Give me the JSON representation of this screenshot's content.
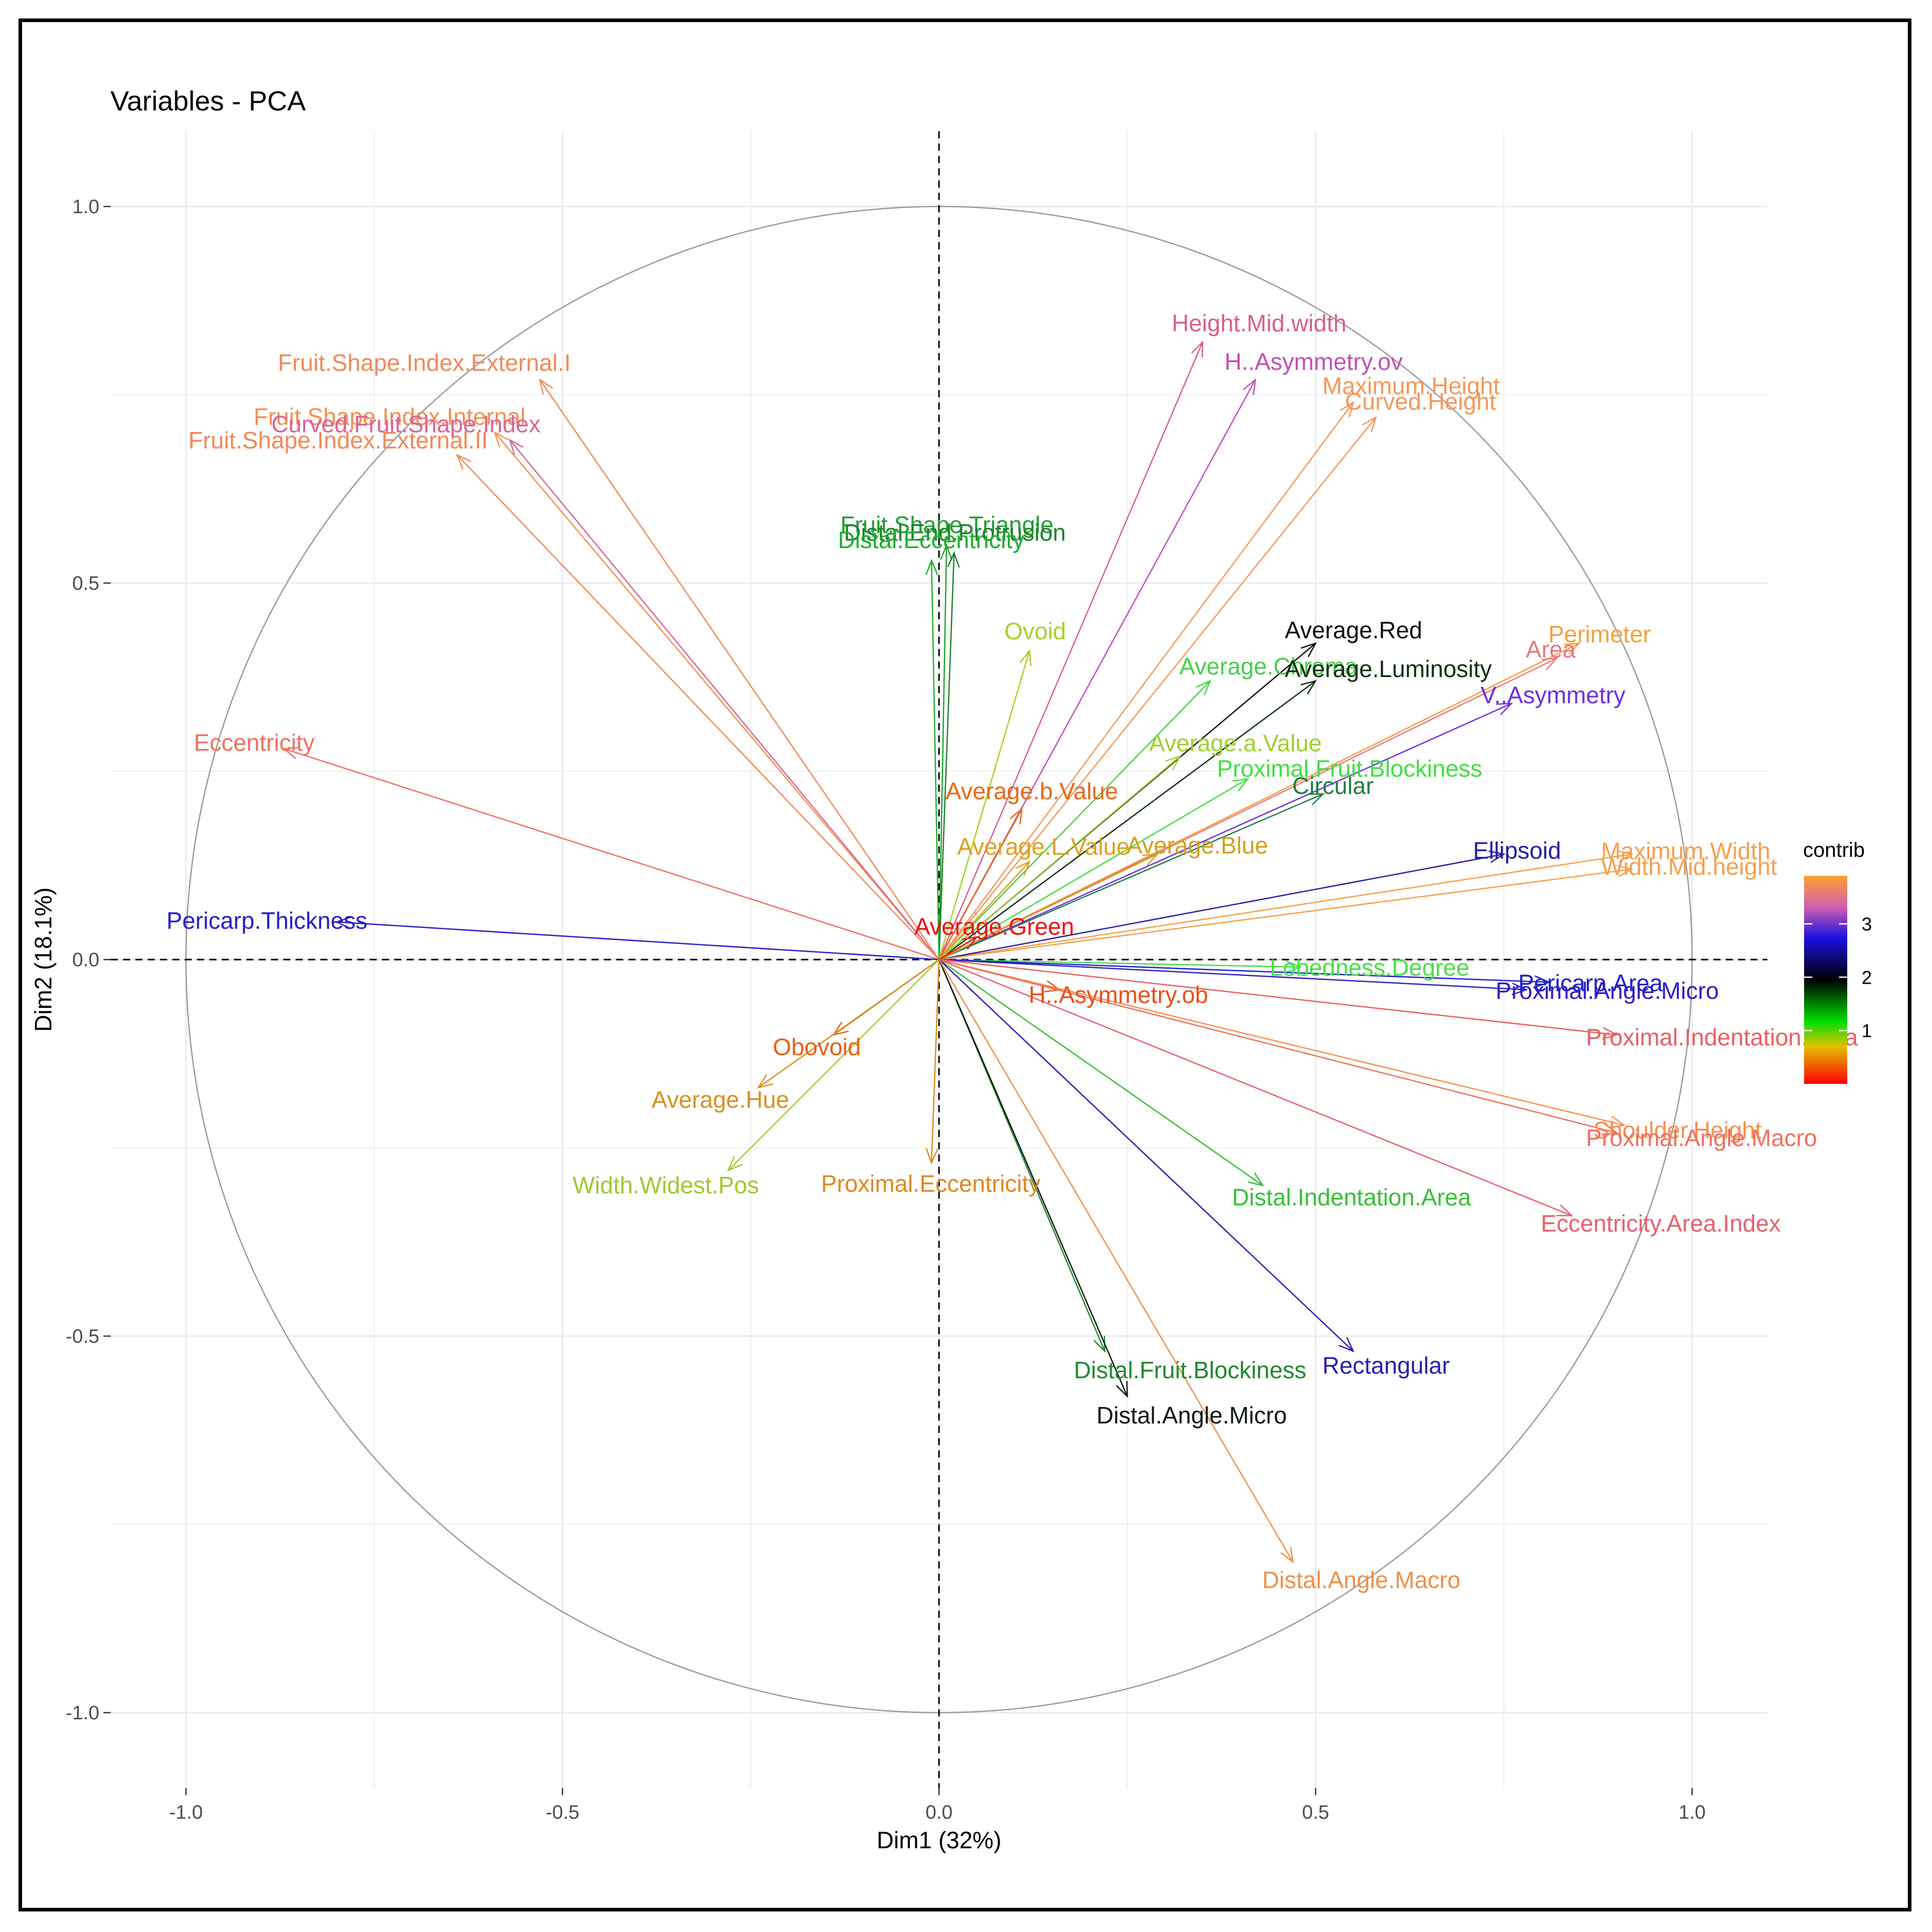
{
  "chart_data": {
    "type": "pca-variable-correlation-circle",
    "title": "Variables - PCA",
    "xlabel": "Dim1 (32%)",
    "ylabel": "Dim2 (18.1%)",
    "xlim": [
      -1.1,
      1.1
    ],
    "ylim": [
      -1.1,
      1.1
    ],
    "x_ticks": [
      {
        "value": -1.0,
        "label": "-1.0"
      },
      {
        "value": -0.5,
        "label": "-0.5"
      },
      {
        "value": 0.0,
        "label": "0.0"
      },
      {
        "value": 0.5,
        "label": "0.5"
      },
      {
        "value": 1.0,
        "label": "1.0"
      }
    ],
    "y_ticks": [
      {
        "value": 1.0,
        "label": "1.0"
      },
      {
        "value": 0.5,
        "label": "0.5"
      },
      {
        "value": 0.0,
        "label": "0.0"
      },
      {
        "value": -0.5,
        "label": "-0.5"
      },
      {
        "value": -1.0,
        "label": "-1.0"
      }
    ],
    "grid": true,
    "legend": {
      "title": "contrib",
      "position": "right",
      "ticks": [
        {
          "value": 1,
          "label": "1"
        },
        {
          "value": 2,
          "label": "2"
        },
        {
          "value": 3,
          "label": "3"
        }
      ],
      "range": [
        0,
        3.9
      ],
      "colors": [
        "#ff0000",
        "#00e000",
        "#000000",
        "#1a10e0",
        "#e060a0",
        "#ffa040"
      ]
    },
    "variables": [
      {
        "name": "Fruit.Shape.Index.External.I",
        "x": -0.53,
        "y": 0.77,
        "color": "#f08a5a"
      },
      {
        "name": "Fruit.Shape.Index.Internal",
        "x": -0.59,
        "y": 0.7,
        "color": "#f59050"
      },
      {
        "name": "Curved.Fruit.Shape.Index",
        "x": -0.57,
        "y": 0.69,
        "color": "#d8669a"
      },
      {
        "name": "Fruit.Shape.Index.External.II",
        "x": -0.64,
        "y": 0.67,
        "color": "#f08a5a"
      },
      {
        "name": "Eccentricity",
        "x": -0.87,
        "y": 0.28,
        "color": "#f07060"
      },
      {
        "name": "Pericarp.Thickness",
        "x": -0.8,
        "y": 0.05,
        "color": "#2820c8"
      },
      {
        "name": "Height.Mid.width",
        "x": 0.35,
        "y": 0.82,
        "color": "#d8608c"
      },
      {
        "name": "H..Asymmetry.ov",
        "x": 0.42,
        "y": 0.77,
        "color": "#c050b8"
      },
      {
        "name": "Maximum.Height",
        "x": 0.55,
        "y": 0.74,
        "color": "#f59858"
      },
      {
        "name": "Curved.Height",
        "x": 0.58,
        "y": 0.72,
        "color": "#f59858"
      },
      {
        "name": "Fruit.Shape.Triangle",
        "x": 0.01,
        "y": 0.55,
        "color": "#20a030"
      },
      {
        "name": "Distal.End.Protrusion",
        "x": 0.02,
        "y": 0.54,
        "color": "#208030"
      },
      {
        "name": "Distal.Eccentricity",
        "x": -0.01,
        "y": 0.53,
        "color": "#20b030"
      },
      {
        "name": "Average.Red",
        "x": 0.5,
        "y": 0.42,
        "color": "#101010"
      },
      {
        "name": "Perimeter",
        "x": 0.85,
        "y": 0.42,
        "color": "#f5a040"
      },
      {
        "name": "Ovoid",
        "x": 0.12,
        "y": 0.41,
        "color": "#a8d028"
      },
      {
        "name": "Average.Chroma",
        "x": 0.36,
        "y": 0.37,
        "color": "#48d048"
      },
      {
        "name": "Average.Luminosity",
        "x": 0.5,
        "y": 0.37,
        "color": "#103010"
      },
      {
        "name": "Area",
        "x": 0.82,
        "y": 0.4,
        "color": "#e87880"
      },
      {
        "name": "V..Asymmetry",
        "x": 0.76,
        "y": 0.34,
        "color": "#7030e0"
      },
      {
        "name": "Average.a.Value",
        "x": 0.32,
        "y": 0.27,
        "color": "#a0d030"
      },
      {
        "name": "Average.b.Value",
        "x": 0.11,
        "y": 0.2,
        "color": "#e86818"
      },
      {
        "name": "Proximal.Fruit.Blockiness",
        "x": 0.41,
        "y": 0.24,
        "color": "#40e040"
      },
      {
        "name": "Circular",
        "x": 0.51,
        "y": 0.22,
        "color": "#208040"
      },
      {
        "name": "Maximum.Width",
        "x": 0.92,
        "y": 0.14,
        "color": "#f5a050"
      },
      {
        "name": "Average.L.Value",
        "x": 0.12,
        "y": 0.13,
        "color": "#e0a020"
      },
      {
        "name": "Ellipsoid",
        "x": 0.75,
        "y": 0.14,
        "color": "#2820a0"
      },
      {
        "name": "Width.Mid.height",
        "x": 0.92,
        "y": 0.12,
        "color": "#f5a050"
      },
      {
        "name": "Average.Blue",
        "x": 0.29,
        "y": 0.14,
        "color": "#d0a020"
      },
      {
        "name": "Lobedness.Degree",
        "x": 0.48,
        "y": -0.01,
        "color": "#48e048"
      },
      {
        "name": "Average.Green",
        "x": 0.05,
        "y": 0.03,
        "color": "#f01010"
      },
      {
        "name": "Pericarp.Area",
        "x": 0.81,
        "y": -0.03,
        "color": "#2020d0"
      },
      {
        "name": "Proximal.Angle.Micro",
        "x": 0.78,
        "y": -0.04,
        "color": "#3020c0"
      },
      {
        "name": "Proximal.Indentation.Area",
        "x": 0.9,
        "y": -0.1,
        "color": "#e86060"
      },
      {
        "name": "Obovoid",
        "x": -0.14,
        "y": -0.1,
        "color": "#e86018"
      },
      {
        "name": "H..Asymmetry.ob",
        "x": 0.16,
        "y": -0.04,
        "color": "#e85018"
      },
      {
        "name": "Shoulder.Height",
        "x": 0.91,
        "y": -0.22,
        "color": "#f59050"
      },
      {
        "name": "Average.Hue",
        "x": -0.24,
        "y": -0.17,
        "color": "#d89020"
      },
      {
        "name": "Width.Widest.Pos",
        "x": -0.28,
        "y": -0.28,
        "color": "#a0c830"
      },
      {
        "name": "Distal.Indentation.Area",
        "x": 0.43,
        "y": -0.3,
        "color": "#38c038"
      },
      {
        "name": "Proximal.Angle.Macro",
        "x": 0.9,
        "y": -0.23,
        "color": "#f07060"
      },
      {
        "name": "Proximal.Eccentricity",
        "x": -0.01,
        "y": -0.27,
        "color": "#e08820"
      },
      {
        "name": "Eccentricity.Area.Index",
        "x": 0.84,
        "y": -0.34,
        "color": "#e86070"
      },
      {
        "name": "Rectangular",
        "x": 0.55,
        "y": -0.52,
        "color": "#2820b0"
      },
      {
        "name": "Distal.Fruit.Blockiness",
        "x": 0.22,
        "y": -0.52,
        "color": "#208830"
      },
      {
        "name": "Distal.Angle.Micro",
        "x": 0.25,
        "y": -0.58,
        "color": "#101810"
      },
      {
        "name": "Distal.Angle.Macro",
        "x": 0.47,
        "y": -0.8,
        "color": "#f09048"
      }
    ]
  }
}
